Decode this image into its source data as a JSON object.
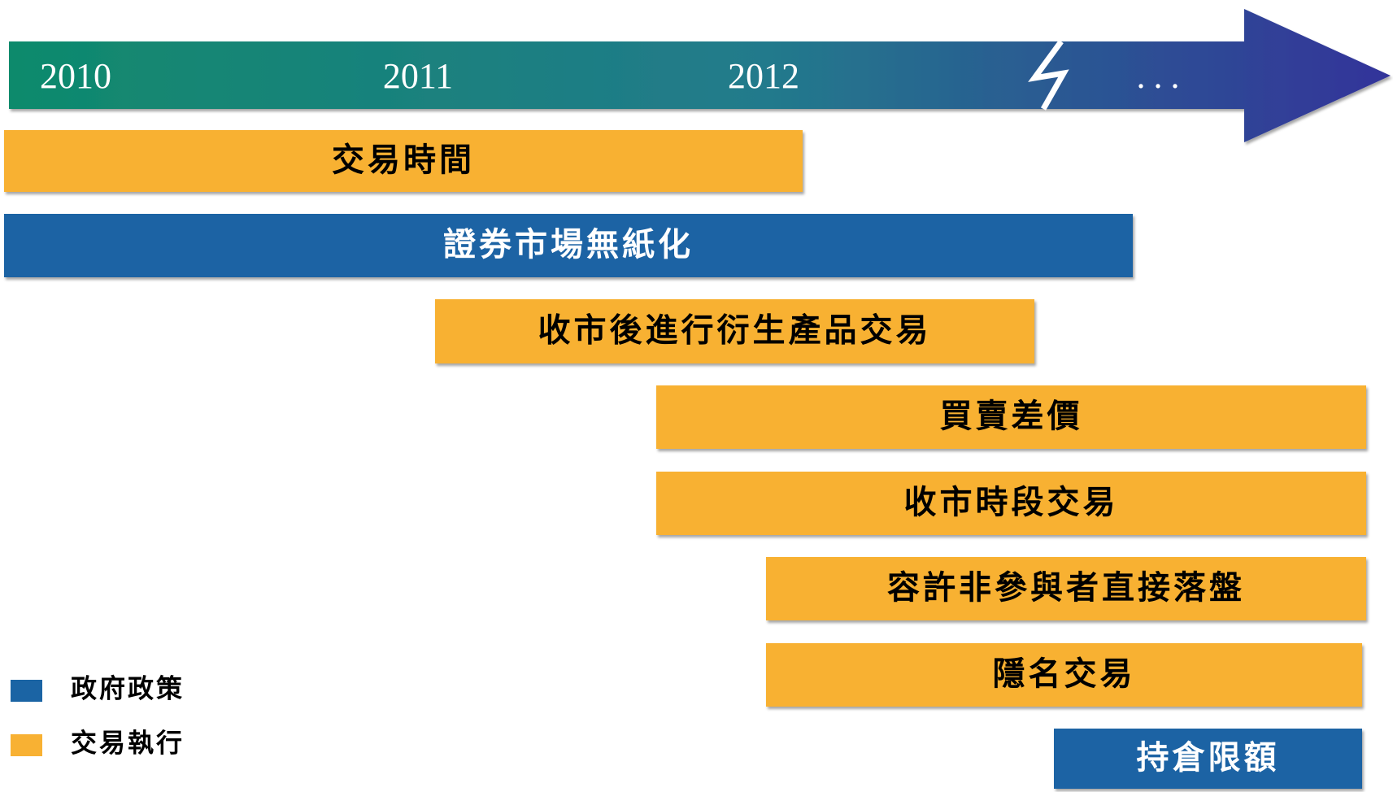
{
  "timeline": {
    "years": [
      "2010",
      "2011",
      "2012"
    ],
    "ellipsis": "..."
  },
  "bars": [
    {
      "label": "交易時間",
      "color": "#f8b133"
    },
    {
      "label": "證券市場無紙化",
      "color": "#1b64a4"
    },
    {
      "label": "收市後進行衍生產品交易",
      "color": "#f8b133"
    },
    {
      "label": "買賣差價",
      "color": "#f8b133"
    },
    {
      "label": "收市時段交易",
      "color": "#f8b133"
    },
    {
      "label": "容許非參與者直接落盤",
      "color": "#f8b133"
    },
    {
      "label": "隱名交易",
      "color": "#f8b133"
    },
    {
      "label": "持倉限額",
      "color": "#1b64a4"
    }
  ],
  "legend": [
    {
      "label": "政府政策",
      "color": "#1b64a4"
    },
    {
      "label": "交易執行",
      "color": "#f8b133"
    }
  ]
}
